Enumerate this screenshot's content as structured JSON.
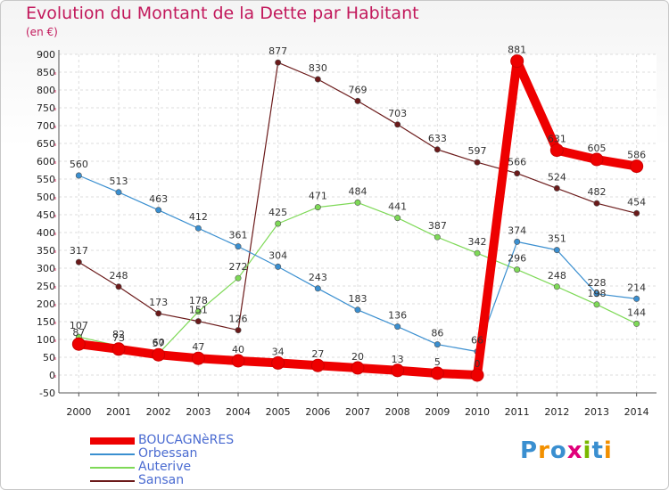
{
  "title": "Evolution du Montant de la Dette par Habitant",
  "unit_label": "(en €)",
  "logo": {
    "text": "Proxiti",
    "letter_colors": [
      "#3a8fd0",
      "#f29000",
      "#3a8fd0",
      "#e0007a",
      "#7ab800",
      "#3a8fd0",
      "#f29000"
    ]
  },
  "chart_data": {
    "type": "line",
    "x": [
      "2000",
      "2001",
      "2002",
      "2003",
      "2004",
      "2005",
      "2006",
      "2007",
      "2008",
      "2009",
      "2010",
      "2011",
      "2012",
      "2013",
      "2014"
    ],
    "ylim": [
      -50,
      900
    ],
    "yticks": [
      "-50",
      "0",
      "50",
      "100",
      "150",
      "200",
      "250",
      "300",
      "350",
      "400",
      "450",
      "500",
      "550",
      "600",
      "650",
      "700",
      "750",
      "800",
      "850",
      "900"
    ],
    "ytick_values": [
      -50,
      0,
      50,
      100,
      150,
      200,
      250,
      300,
      350,
      400,
      450,
      500,
      550,
      600,
      650,
      700,
      750,
      800,
      850,
      900
    ],
    "grid": true,
    "legend_position": "bottom-left",
    "series": [
      {
        "name": "BOUCAGNèRES",
        "color": "#ee0000",
        "values": [
          87,
          73,
          57,
          47,
          40,
          34,
          27,
          20,
          13,
          5,
          0,
          881,
          631,
          605,
          586
        ],
        "labels": [
          "87",
          "73",
          "57",
          "47",
          "40",
          "34",
          "27",
          "20",
          "13",
          "5",
          "0",
          "881",
          "631",
          "605",
          "586"
        ]
      },
      {
        "name": "Orbessan",
        "color": "#3a8fd0",
        "values": [
          560,
          513,
          463,
          412,
          361,
          304,
          243,
          183,
          136,
          86,
          66,
          374,
          351,
          228,
          214
        ],
        "labels": [
          "560",
          "513",
          "463",
          "412",
          "361",
          "304",
          "243",
          "183",
          "136",
          "86",
          "66",
          "374",
          "351",
          "228",
          "214"
        ]
      },
      {
        "name": "Auterive",
        "color": "#7ed957",
        "values": [
          107,
          82,
          60,
          178,
          272,
          425,
          471,
          484,
          441,
          387,
          342,
          296,
          248,
          198,
          144
        ],
        "labels": [
          "107",
          "82",
          "60",
          "178",
          "272",
          "425",
          "471",
          "484",
          "441",
          "387",
          "342",
          "296",
          "248",
          "198",
          "144"
        ]
      },
      {
        "name": "Sansan",
        "color": "#6b1a1a",
        "values": [
          317,
          248,
          173,
          151,
          126,
          877,
          830,
          769,
          703,
          633,
          597,
          566,
          524,
          482,
          454
        ],
        "labels": [
          "317",
          "248",
          "173",
          "151",
          "126",
          "877",
          "830",
          "769",
          "703",
          "633",
          "597",
          "566",
          "524",
          "482",
          "454"
        ]
      }
    ]
  }
}
